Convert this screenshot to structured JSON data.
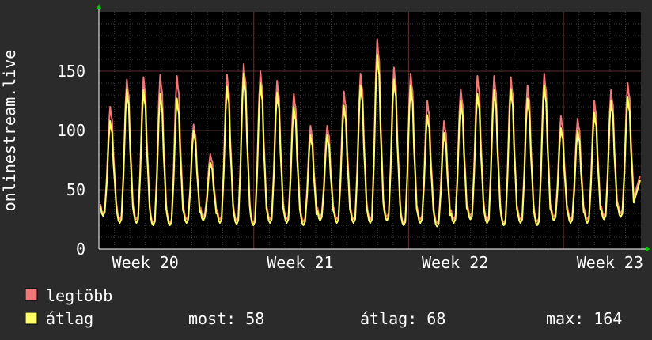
{
  "colors": {
    "background": "#2b2b2b",
    "plot_background": "#000000",
    "grid": "#3a3a3a",
    "axis": "#ffffff",
    "arrow": "#00cc00",
    "max_series": "#f07878",
    "avg_series": "#ffff66"
  },
  "chart_data": {
    "type": "line",
    "ylabel": "onlinestream.live",
    "ylim": [
      0,
      200
    ],
    "yticks": [
      0,
      50,
      100,
      150
    ],
    "x_range_days": [
      0,
      35
    ],
    "x_ticks": [
      {
        "label": "Week 20",
        "day": 3
      },
      {
        "label": "Week 21",
        "day": 13
      },
      {
        "label": "Week 22",
        "day": 23
      },
      {
        "label": "Week 23",
        "day": 33
      }
    ],
    "grid": true,
    "series": [
      {
        "name": "legtöbb",
        "color": "#f07878",
        "daily_peaks": [
          120,
          143,
          145,
          147,
          146,
          105,
          80,
          147,
          156,
          150,
          142,
          131,
          104,
          104,
          133,
          148,
          177,
          153,
          148,
          125,
          108,
          135,
          146,
          146,
          145,
          138,
          148,
          112,
          110,
          125,
          134,
          140
        ],
        "daily_troughs": [
          30,
          25,
          25,
          22,
          22,
          25,
          27,
          25,
          24,
          22,
          25,
          25,
          23,
          27,
          25,
          25,
          25,
          27,
          22,
          25,
          22,
          25,
          28,
          25,
          22,
          25,
          23,
          27,
          25,
          25,
          28,
          30
        ]
      },
      {
        "name": "átlag",
        "color": "#ffff66",
        "daily_peaks": [
          108,
          135,
          134,
          131,
          127,
          100,
          73,
          137,
          148,
          140,
          132,
          120,
          96,
          96,
          121,
          138,
          164,
          143,
          138,
          113,
          98,
          125,
          131,
          134,
          135,
          127,
          138,
          102,
          100,
          115,
          125,
          128
        ],
        "daily_troughs": [
          28,
          22,
          22,
          20,
          20,
          22,
          24,
          22,
          21,
          20,
          22,
          22,
          20,
          24,
          22,
          22,
          22,
          24,
          20,
          22,
          19,
          22,
          25,
          22,
          20,
          22,
          20,
          24,
          22,
          22,
          25,
          27
        ]
      }
    ]
  },
  "legend": {
    "max_label": "legtöbb",
    "avg_label": "átlag",
    "stats": {
      "now": "most: 58",
      "avg": "átlag: 68",
      "max": "max: 164"
    }
  }
}
